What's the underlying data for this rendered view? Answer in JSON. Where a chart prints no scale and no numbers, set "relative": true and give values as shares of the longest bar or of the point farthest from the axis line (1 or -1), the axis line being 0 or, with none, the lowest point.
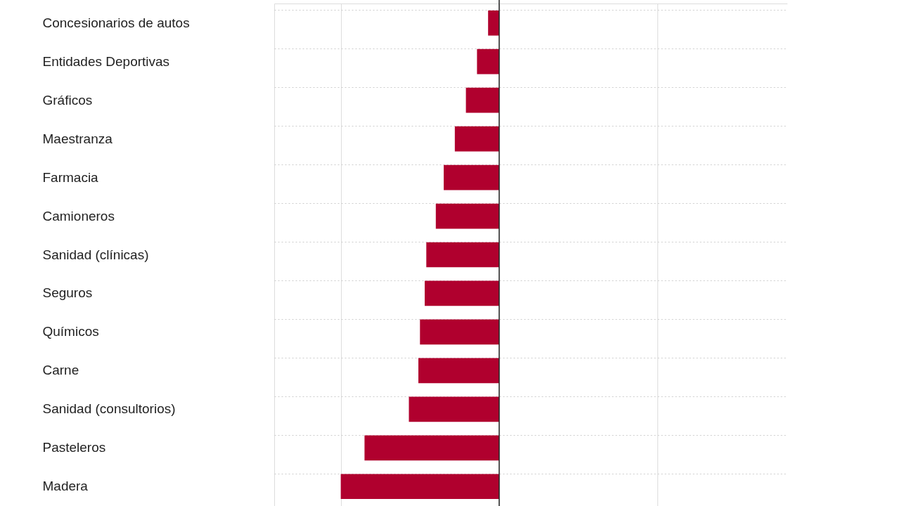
{
  "chart_data": {
    "type": "bar",
    "orientation": "horizontal",
    "relative": true,
    "grid": true,
    "categories": [
      "Concesionarios de autos",
      "Entidades Deportivas",
      "Gráficos",
      "Maestranza",
      "Farmacia",
      "Camioneros",
      "Sanidad (clínicas)",
      "Seguros",
      "Químicos",
      "Carne",
      "Sanidad (consultorios)",
      "Pasteleros",
      "Madera"
    ],
    "values": [
      -0.07,
      -0.14,
      -0.21,
      -0.28,
      -0.35,
      -0.4,
      -0.46,
      -0.47,
      -0.5,
      -0.51,
      -0.57,
      -0.85,
      -1
    ],
    "color": "#b0002e"
  }
}
